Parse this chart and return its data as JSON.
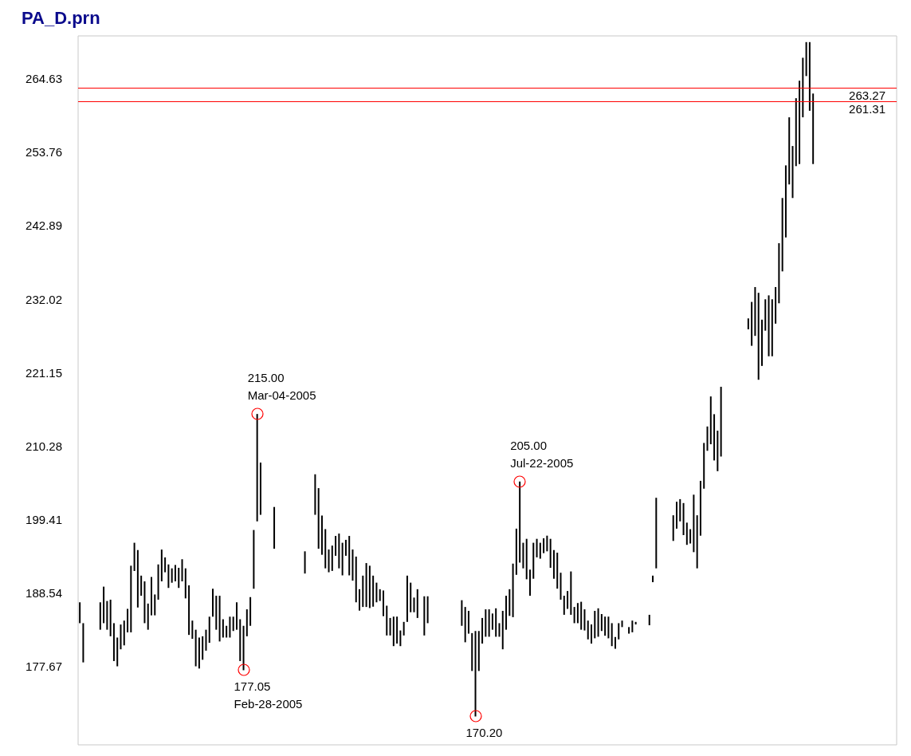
{
  "chart_data": {
    "type": "bar",
    "title": "PA_D.prn",
    "color": "#000000",
    "tick_labels": "y",
    "grid": false,
    "ylim": [
      166,
      271
    ],
    "yticks": [
      177.67,
      188.54,
      199.41,
      210.28,
      221.15,
      232.02,
      242.89,
      253.76,
      264.63
    ],
    "categories": [
      null,
      null,
      null,
      null,
      null,
      null,
      null,
      null,
      null,
      null,
      null,
      null,
      null,
      null,
      null,
      null,
      null,
      null,
      null,
      null,
      null,
      null,
      null,
      null,
      null,
      null,
      null,
      null,
      null,
      null,
      null,
      null,
      null,
      null,
      null,
      null,
      null,
      null,
      null,
      null,
      null,
      null,
      null,
      null,
      null,
      null,
      null,
      null,
      null,
      null,
      null,
      null,
      null,
      null,
      null,
      null,
      null,
      null,
      null,
      null,
      null,
      null,
      null,
      null,
      null,
      null,
      null,
      null,
      null,
      null,
      null,
      null,
      null,
      null,
      null,
      null,
      null,
      null,
      null,
      null,
      null,
      null,
      null,
      null,
      null,
      null,
      null,
      null,
      null,
      null,
      null,
      null,
      null,
      null,
      null,
      null,
      null,
      null,
      null,
      null,
      null,
      null,
      null,
      null,
      null,
      null,
      null,
      null,
      null,
      null,
      null,
      null,
      null,
      null,
      null,
      null,
      null,
      null,
      null,
      null,
      null,
      null,
      null,
      null,
      null,
      null,
      null,
      null,
      null,
      null,
      null,
      null,
      null,
      null,
      null,
      null,
      null,
      null,
      null,
      null,
      null,
      null,
      null,
      null,
      null,
      null,
      null,
      null,
      null,
      null,
      null,
      null,
      null,
      null,
      null,
      null,
      null,
      null,
      null,
      null,
      null,
      null,
      null,
      null,
      null,
      null,
      null,
      null,
      null,
      null,
      null,
      null,
      null,
      null,
      null,
      null,
      null,
      null,
      null,
      null,
      null,
      null,
      null,
      null,
      null,
      null,
      null,
      null,
      null,
      null,
      null,
      null,
      null,
      null,
      null,
      null,
      null,
      null,
      null,
      null,
      null,
      null,
      null,
      null,
      null,
      null,
      null,
      null,
      null,
      null,
      null,
      null,
      null,
      null,
      null,
      null,
      null,
      null,
      null,
      null,
      null,
      null,
      null,
      null,
      null,
      null,
      null,
      null,
      null,
      null,
      null,
      null,
      null,
      null,
      null,
      null,
      null,
      null,
      null,
      null
    ],
    "base": [
      184.02,
      178.21,
      null,
      null,
      null,
      null,
      183.05,
      184.02,
      183.05,
      182.08,
      178.41,
      177.63,
      180.15,
      180.73,
      182.66,
      182.66,
      191.75,
      186.34,
      188.08,
      184.02,
      183.05,
      185.18,
      185.18,
      187.5,
      190.21,
      191.56,
      189.24,
      190.01,
      190.21,
      189.24,
      190.21,
      187.69,
      182.28,
      181.7,
      177.63,
      177.3,
      178.6,
      179.95,
      181.11,
      184.98,
      183.05,
      181.31,
      181.89,
      181.89,
      181.89,
      182.86,
      183.05,
      178.41,
      177.05,
      182.08,
      183.63,
      189.12,
      199.1,
      200.07,
      null,
      null,
      null,
      195.04,
      null,
      null,
      null,
      null,
      null,
      null,
      null,
      null,
      191.37,
      null,
      null,
      200.07,
      195.04,
      194.15,
      192.14,
      191.56,
      191.76,
      194.0,
      192.14,
      191.1,
      194.0,
      191.1,
      190.32,
      187.11,
      185.88,
      186.42,
      186.42,
      186.26,
      186.46,
      187.11,
      187.31,
      185.06,
      182.2,
      182.2,
      180.62,
      181.0,
      180.62,
      182.2,
      184.21,
      185.64,
      185.64,
      184.79,
      null,
      182.2,
      184.02,
      null,
      null,
      null,
      null,
      null,
      null,
      null,
      null,
      null,
      183.63,
      181.19,
      182.47,
      176.94,
      170.2,
      176.94,
      181.0,
      182.01,
      182.01,
      183.05,
      182.01,
      182.01,
      180.15,
      183.05,
      185.1,
      184.91,
      191.18,
      192.99,
      192.14,
      190.52,
      188.08,
      190.6,
      193.77,
      193.57,
      194.39,
      194.66,
      192.22,
      190.6,
      189.13,
      187.5,
      185.26,
      186.14,
      185.26,
      184.02,
      184.02,
      183.05,
      182.94,
      181.62,
      181.0,
      181.78,
      182.01,
      182.86,
      182.16,
      181.78,
      180.62,
      180.23,
      181.62,
      183.44,
      null,
      182.47,
      182.67,
      183.83,
      null,
      null,
      null,
      183.71,
      190.09,
      192.14,
      null,
      null,
      null,
      null,
      196.2,
      198.02,
      199.1,
      197.06,
      195.62,
      195.82,
      194.54,
      192.14,
      196.98,
      203.94,
      209.55,
      210.52,
      208.12,
      206.53,
      208.7,
      null,
      null,
      null,
      null,
      null,
      null,
      null,
      227.54,
      225.1,
      226.57,
      220.07,
      222.12,
      227.34,
      223.55,
      223.55,
      228.38,
      231.4,
      236.12,
      241.15,
      249.0,
      246.99,
      251.71,
      252.02,
      258.94,
      265.05,
      259.91,
      252.02,
      null,
      null,
      null,
      null,
      null,
      null,
      null,
      null,
      null,
      null,
      null,
      null,
      null,
      null,
      null,
      null,
      null,
      null,
      null,
      null,
      null,
      null,
      null,
      null
    ],
    "values": [
      3.09,
      5.81,
      null,
      null,
      null,
      null,
      4.06,
      5.41,
      4.25,
      5.42,
      5.61,
      4.26,
      3.67,
      3.67,
      3.48,
      9.87,
      4.18,
      8.51,
      2.98,
      6.19,
      3.87,
      5.68,
      3.09,
      5.22,
      4.71,
      2.2,
      3.48,
      2.13,
      2.43,
      2.98,
      3.28,
      4.45,
      7.34,
      2.7,
      5.42,
      4.59,
      3.48,
      3.1,
      3.87,
      4.14,
      5.03,
      6.77,
      2.71,
      1.74,
      3.09,
      2.12,
      4.06,
      6.19,
      6.58,
      3.99,
      4.25,
      8.7,
      15.9,
      7.73,
      null,
      null,
      null,
      6.19,
      null,
      null,
      null,
      null,
      null,
      null,
      null,
      null,
      3.29,
      null,
      null,
      6.0,
      8.98,
      5.81,
      5.81,
      3.37,
      3.75,
      2.94,
      5.15,
      4.83,
      2.36,
      5.84,
      4.61,
      6.77,
      3.17,
      4.64,
      6.5,
      6.27,
      4.6,
      2.91,
      1.74,
      3.8,
      4.41,
      2.59,
      4.37,
      3.99,
      2.32,
      2.01,
      6.85,
      4.38,
      2.17,
      4.26,
      null,
      5.8,
      3.98,
      null,
      null,
      null,
      null,
      null,
      null,
      null,
      null,
      null,
      3.79,
      5.23,
      3.37,
      5.61,
      12.66,
      5.92,
      3.79,
      4.06,
      4.06,
      2.4,
      4.21,
      2.01,
      5.69,
      5.03,
      3.95,
      7.93,
      6.84,
      12.01,
      3.79,
      5.99,
      3.87,
      5.33,
      2.74,
      2.36,
      2.2,
      2.32,
      4.29,
      4.25,
      5.33,
      3.99,
      2.82,
      2.64,
      6.42,
      2.4,
      2.98,
      4.14,
      3.13,
      2.78,
      2.83,
      4.06,
      4.21,
      2.51,
      2.83,
      3.21,
      3.4,
      1.74,
      2.4,
      0.96,
      null,
      0.97,
      1.73,
      0.38,
      null,
      null,
      null,
      1.55,
      0.97,
      10.45,
      null,
      null,
      null,
      null,
      3.8,
      3.98,
      3.29,
      4.75,
      3.29,
      2.12,
      8.51,
      7.86,
      8.12,
      6.77,
      3.6,
      7.08,
      6.85,
      6.0,
      10.33,
      null,
      null,
      null,
      null,
      null,
      null,
      null,
      1.62,
      6.5,
      7.23,
      12.88,
      6.85,
      4.65,
      9.02,
      8.44,
      5.42,
      8.9,
      10.87,
      10.67,
      9.94,
      7.7,
      10.06,
      12.34,
      8.82,
      5.03,
      10.17,
      10.44,
      null,
      null,
      null,
      null,
      null,
      null,
      null,
      null,
      null,
      null,
      null,
      null,
      null,
      null,
      null,
      null,
      null,
      null,
      null,
      null,
      null,
      null,
      null,
      null
    ],
    "ref_lines": [
      {
        "axis": "y",
        "value": 263.27,
        "label": "263.27",
        "color": "#ff0000"
      },
      {
        "axis": "y",
        "value": 261.31,
        "label": "261.31",
        "color": "#ff0000"
      }
    ],
    "annotations": [
      "215.00",
      "Mar-04-2005",
      "205.00",
      "Jul-22-2005",
      "177.05",
      "Feb-28-2005",
      "170.20"
    ]
  }
}
